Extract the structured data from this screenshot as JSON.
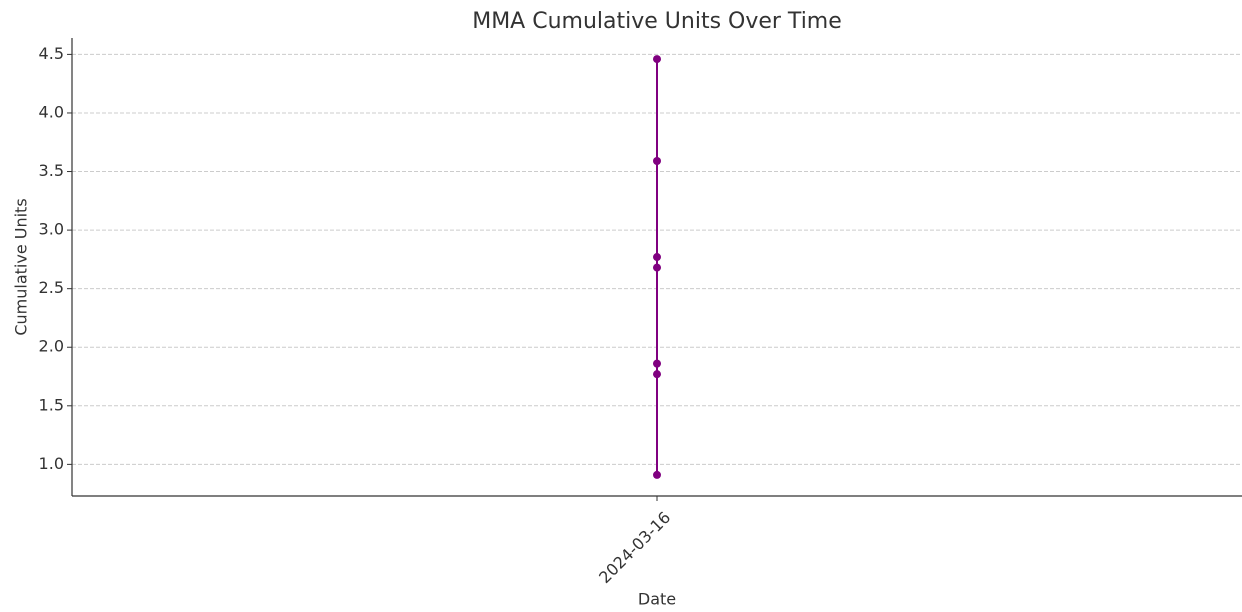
{
  "chart_data": {
    "type": "line",
    "title": "MMA Cumulative Units Over Time",
    "x_label": "Date",
    "y_label": "Cumulative Units",
    "x": [
      "2024-03-16",
      "2024-03-16",
      "2024-03-16",
      "2024-03-16",
      "2024-03-16",
      "2024-03-16",
      "2024-03-16"
    ],
    "xticks": [
      "2024-03-16"
    ],
    "series": [
      {
        "name": "MMA",
        "color": "#800080",
        "values": [
          0.91,
          1.77,
          1.86,
          2.68,
          2.77,
          3.59,
          4.46
        ]
      }
    ],
    "ylim": [
      0.73,
      4.64
    ],
    "yticks": [
      {
        "value": 1.0,
        "label": "1.0"
      },
      {
        "value": 1.5,
        "label": "1.5"
      },
      {
        "value": 2.0,
        "label": "2.0"
      },
      {
        "value": 2.5,
        "label": "2.5"
      },
      {
        "value": 3.0,
        "label": "3.0"
      },
      {
        "value": 3.5,
        "label": "3.5"
      },
      {
        "value": 4.0,
        "label": "4.0"
      },
      {
        "value": 4.5,
        "label": "4.5"
      }
    ],
    "grid": true
  }
}
